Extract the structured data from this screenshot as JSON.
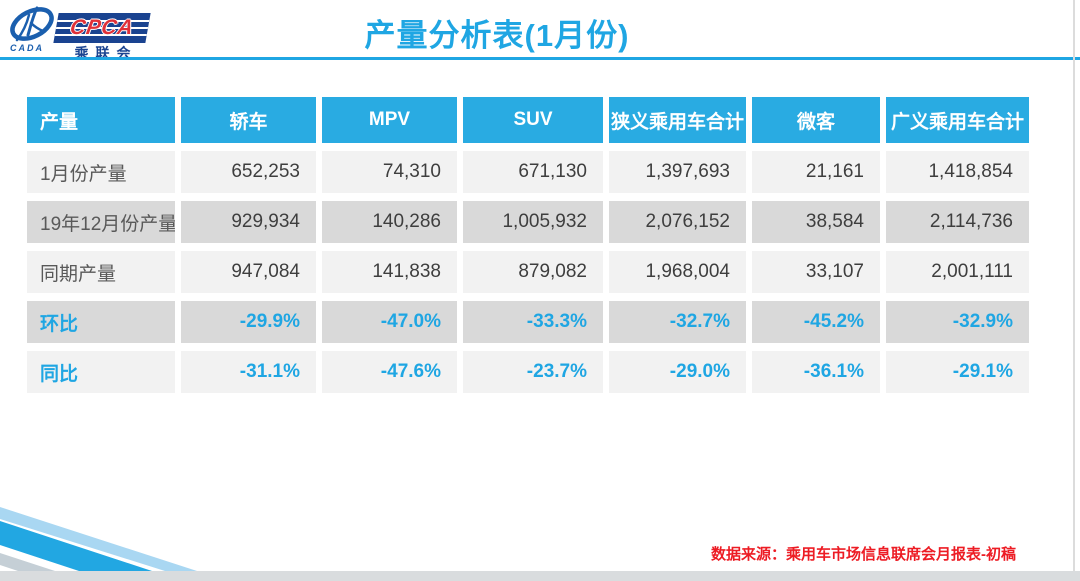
{
  "logo": {
    "cada_label": "CADA",
    "cpca_label": "CPCA",
    "cn_name": "乘联会"
  },
  "header": {
    "title": "产量分析表(1月份)"
  },
  "table": {
    "columns": [
      "产量",
      "轿车",
      "MPV",
      "SUV",
      "狭义乘用车合计",
      "微客",
      "广义乘用车合计"
    ],
    "rows": [
      {
        "label": "1月份产量",
        "highlight": false,
        "values": [
          "652,253",
          "74,310",
          "671,130",
          "1,397,693",
          "21,161",
          "1,418,854"
        ]
      },
      {
        "label": "19年12月份产量",
        "highlight": false,
        "values": [
          "929,934",
          "140,286",
          "1,005,932",
          "2,076,152",
          "38,584",
          "2,114,736"
        ]
      },
      {
        "label": "同期产量",
        "highlight": false,
        "values": [
          "947,084",
          "141,838",
          "879,082",
          "1,968,004",
          "33,107",
          "2,001,111"
        ]
      },
      {
        "label": "环比",
        "highlight": true,
        "values": [
          "-29.9%",
          "-47.0%",
          "-33.3%",
          "-32.7%",
          "-45.2%",
          "-32.9%"
        ]
      },
      {
        "label": "同比",
        "highlight": true,
        "values": [
          "-31.1%",
          "-47.6%",
          "-23.7%",
          "-29.0%",
          "-36.1%",
          "-29.1%"
        ]
      }
    ]
  },
  "footer": {
    "source": "数据来源：乘用车市场信息联席会月报表-初稿"
  },
  "colors": {
    "accent": "#1FA6E3",
    "header_bg": "#29ABE2",
    "row_light": "#F2F2F2",
    "row_dark": "#D9D9D9",
    "source_red": "#ED1C24",
    "logo_navy": "#1A4390",
    "logo_blue": "#1B5FAE"
  }
}
